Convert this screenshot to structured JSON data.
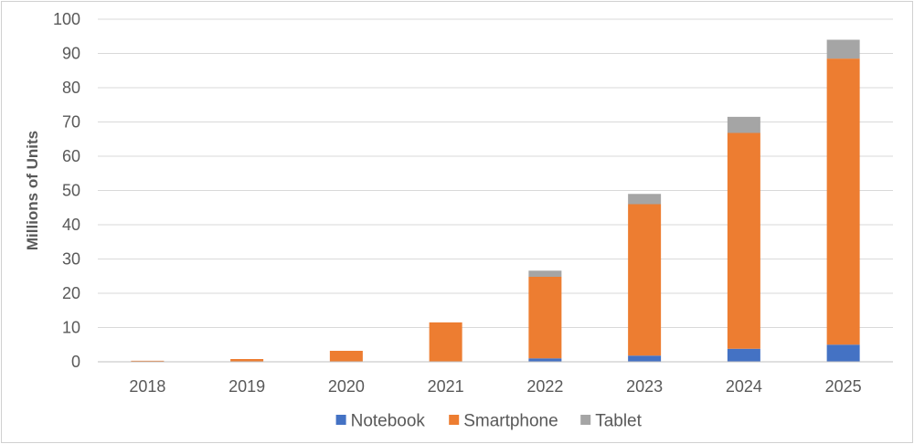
{
  "chart_data": {
    "type": "bar",
    "stacked": true,
    "title": "",
    "xlabel": "",
    "ylabel": "Millions of Units",
    "ylim": [
      0,
      100
    ],
    "yticks": [
      0,
      10,
      20,
      30,
      40,
      50,
      60,
      70,
      80,
      90,
      100
    ],
    "grid": true,
    "legend_position": "bottom",
    "categories": [
      "2018",
      "2019",
      "2020",
      "2021",
      "2022",
      "2023",
      "2024",
      "2025"
    ],
    "series": [
      {
        "name": "Notebook",
        "color": "#4472c4",
        "values": [
          0,
          0,
          0,
          0,
          1,
          1.8,
          3.8,
          5
        ]
      },
      {
        "name": "Smartphone",
        "color": "#ed7d31",
        "values": [
          0.3,
          0.8,
          3.2,
          11.5,
          23.8,
          44.2,
          63,
          83.5
        ]
      },
      {
        "name": "Tablet",
        "color": "#a5a5a5",
        "values": [
          0,
          0,
          0,
          0,
          1.8,
          3,
          4.7,
          5.5
        ]
      }
    ]
  }
}
